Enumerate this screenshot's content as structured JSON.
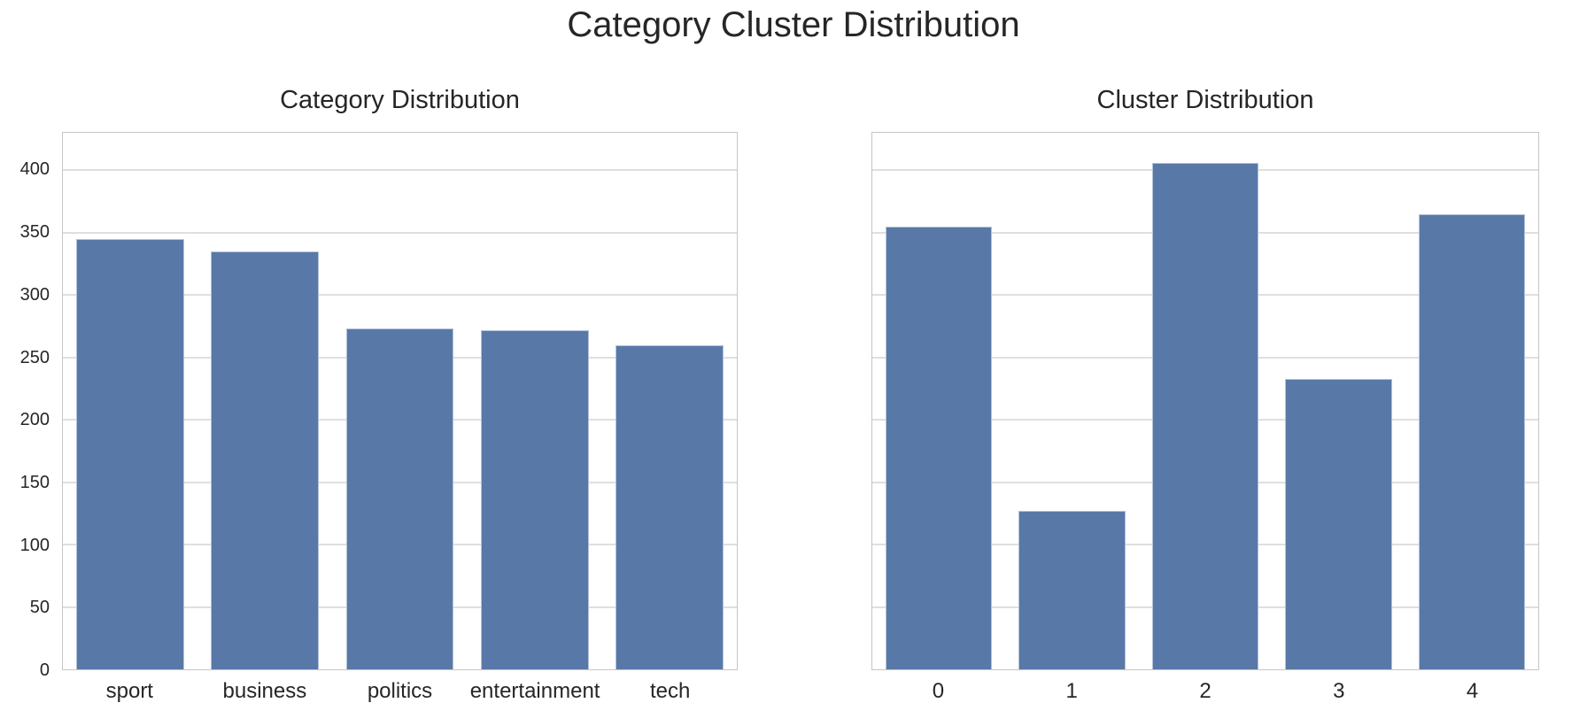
{
  "title": "Category Cluster Distribution",
  "colors": {
    "bar": "#5878a8",
    "grid": "#dfdfdf",
    "spine": "#c6c6c6",
    "text": "#262626",
    "background": "#ffffff"
  },
  "chart_data": [
    {
      "type": "bar",
      "title": "Category Distribution",
      "categories": [
        "sport",
        "business",
        "politics",
        "entertainment",
        "tech"
      ],
      "values": [
        345,
        335,
        273,
        272,
        260
      ],
      "xlabel": "",
      "ylabel": "",
      "ylim": [
        0,
        430
      ],
      "yticks": [
        0,
        50,
        100,
        150,
        200,
        250,
        300,
        350,
        400
      ],
      "show_ytick_labels": true,
      "grid": "horizontal",
      "legend": "none",
      "bar_color": "#5878a8"
    },
    {
      "type": "bar",
      "title": "Cluster Distribution",
      "categories": [
        "0",
        "1",
        "2",
        "3",
        "4"
      ],
      "values": [
        355,
        127,
        406,
        233,
        365
      ],
      "xlabel": "",
      "ylabel": "",
      "ylim": [
        0,
        430
      ],
      "yticks": [
        0,
        50,
        100,
        150,
        200,
        250,
        300,
        350,
        400
      ],
      "show_ytick_labels": false,
      "grid": "horizontal",
      "legend": "none",
      "bar_color": "#5878a8"
    }
  ]
}
